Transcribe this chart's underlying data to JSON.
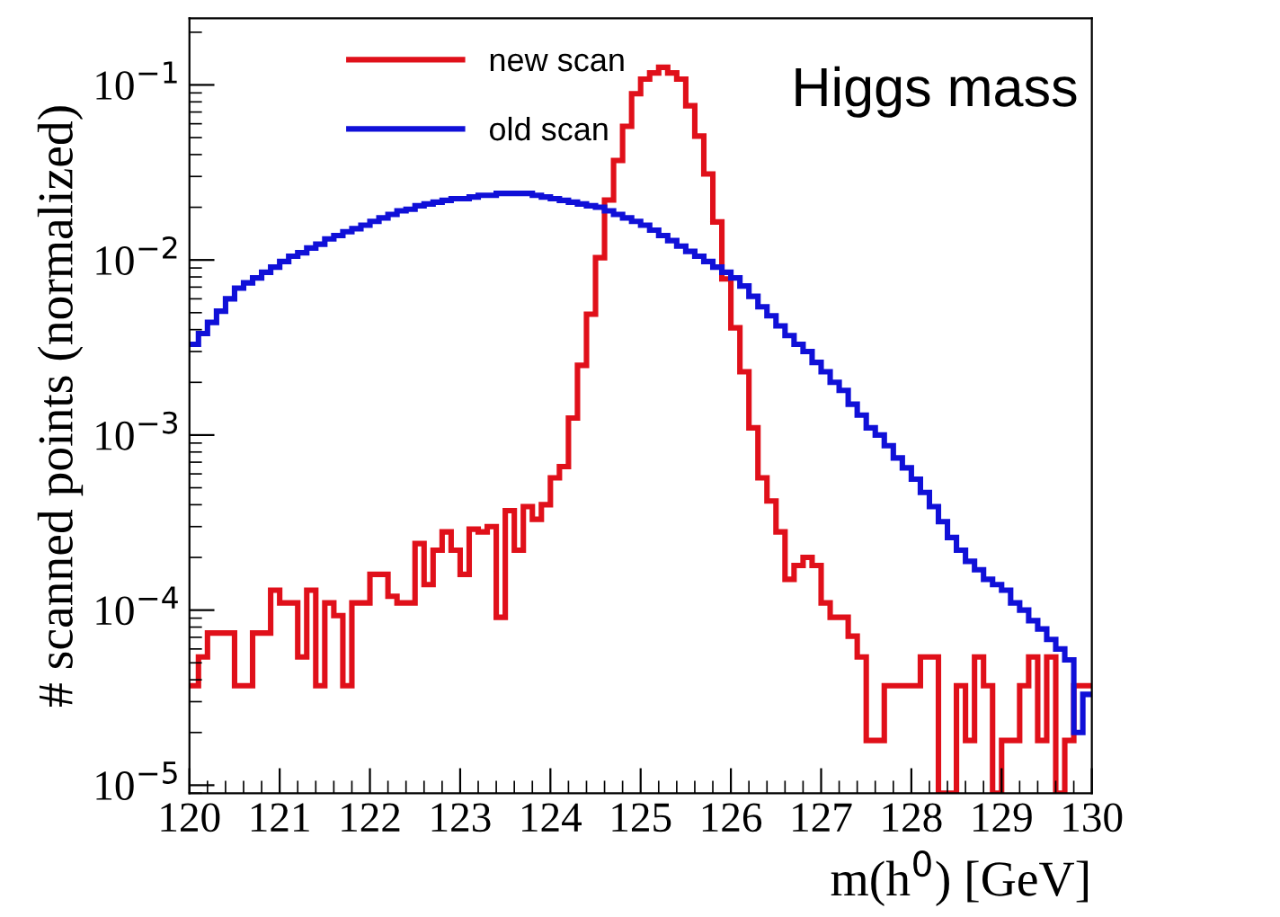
{
  "chart_data": {
    "type": "histogram",
    "xlabel": "m(h$^{0}$) [GeV]",
    "ylabel": "# scanned points (normalized)",
    "annotations": [
      "Higgs mass"
    ],
    "bins": [
      120.0,
      120.1,
      120.2,
      120.3,
      120.4,
      120.5,
      120.6,
      120.7,
      120.8,
      120.9,
      121.0,
      121.1,
      121.2,
      121.3,
      121.4,
      121.5,
      121.6,
      121.7,
      121.8,
      121.9,
      122.0,
      122.1,
      122.2,
      122.3,
      122.4,
      122.5,
      122.6,
      122.7,
      122.8,
      122.9,
      123.0,
      123.1,
      123.2,
      123.3,
      123.4,
      123.5,
      123.6,
      123.7,
      123.8,
      123.9,
      124.0,
      124.1,
      124.2,
      124.3,
      124.4,
      124.5,
      124.6,
      124.7,
      124.8,
      124.9,
      125.0,
      125.1,
      125.2,
      125.3,
      125.4,
      125.5,
      125.6,
      125.7,
      125.8,
      125.9,
      126.0,
      126.1,
      126.2,
      126.3,
      126.4,
      126.5,
      126.6,
      126.7,
      126.8,
      126.9,
      127.0,
      127.1,
      127.2,
      127.3,
      127.4,
      127.5,
      127.6,
      127.7,
      127.8,
      127.9,
      128.0,
      128.1,
      128.2,
      128.3,
      128.4,
      128.5,
      128.6,
      128.7,
      128.8,
      128.9,
      129.0,
      129.1,
      129.2,
      129.3,
      129.4,
      129.5,
      129.6,
      129.7,
      129.8,
      129.9,
      130.0
    ],
    "series": [
      {
        "name": "new scan",
        "color": "#e0101a",
        "values": [
          3.7e-05,
          5.4e-05,
          7.4e-05,
          7.4e-05,
          7.4e-05,
          3.7e-05,
          3.7e-05,
          7.4e-05,
          7.4e-05,
          0.00013,
          0.00011,
          0.00011,
          5.4e-05,
          0.00013,
          3.7e-05,
          0.00011,
          9.3e-05,
          3.7e-05,
          0.00011,
          0.00011,
          0.00016,
          0.00016,
          0.00012,
          0.00011,
          0.00011,
          0.00024,
          0.00014,
          0.00022,
          0.00028,
          0.00022,
          0.00016,
          0.00029,
          0.00028,
          0.0003,
          9.1e-05,
          0.00037,
          0.00022,
          0.00039,
          0.00033,
          0.0004,
          0.00057,
          0.00066,
          0.00125,
          0.0025,
          0.0049,
          0.0103,
          0.022,
          0.037,
          0.058,
          0.089,
          0.108,
          0.117,
          0.126,
          0.117,
          0.108,
          0.076,
          0.051,
          0.031,
          0.0165,
          0.0078,
          0.0041,
          0.0023,
          0.0011,
          0.00057,
          0.00042,
          0.00028,
          0.00015,
          0.00018,
          0.0002,
          0.00018,
          0.00011,
          9.1e-05,
          9.1e-05,
          7.1e-05,
          5.4e-05,
          1.8e-05,
          1.8e-05,
          3.7e-05,
          3.7e-05,
          3.7e-05,
          3.7e-05,
          5.4e-05,
          5.4e-05,
          null,
          null,
          3.7e-05,
          1.8e-05,
          5.4e-05,
          3.7e-05,
          null,
          1.8e-05,
          1.8e-05,
          3.7e-05,
          5.4e-05,
          1.8e-05,
          5.4e-05,
          null,
          1.8e-05,
          3.7e-05,
          3.7e-05
        ]
      },
      {
        "name": "old scan",
        "color": "#1010d8",
        "values": [
          0.0033,
          0.0038,
          0.0044,
          0.0051,
          0.006,
          0.0069,
          0.0074,
          0.0079,
          0.0085,
          0.0091,
          0.0098,
          0.0105,
          0.011,
          0.0117,
          0.0123,
          0.0132,
          0.0138,
          0.0145,
          0.0151,
          0.0158,
          0.0166,
          0.0174,
          0.0182,
          0.0191,
          0.0195,
          0.0204,
          0.0209,
          0.0214,
          0.0219,
          0.0224,
          0.0224,
          0.0229,
          0.0234,
          0.0234,
          0.024,
          0.024,
          0.024,
          0.024,
          0.0234,
          0.0229,
          0.0224,
          0.0219,
          0.0214,
          0.0209,
          0.0204,
          0.02,
          0.0191,
          0.0182,
          0.0174,
          0.0166,
          0.0158,
          0.0148,
          0.0138,
          0.0129,
          0.012,
          0.0112,
          0.0105,
          0.0098,
          0.0091,
          0.0085,
          0.0079,
          0.0071,
          0.0062,
          0.0054,
          0.0048,
          0.0042,
          0.0037,
          0.0033,
          0.003,
          0.0026,
          0.0023,
          0.002,
          0.0018,
          0.0015,
          0.0013,
          0.0011,
          0.001,
          0.00087,
          0.00074,
          0.00065,
          0.00056,
          0.00047,
          0.00039,
          0.00032,
          0.00026,
          0.00022,
          0.00019,
          0.00017,
          0.00015,
          0.00014,
          0.00013,
          0.00011,
          0.0001,
          8.7e-05,
          7.8e-05,
          6.8e-05,
          6e-05,
          5.2e-05,
          2e-05,
          3.3e-05
        ]
      }
    ],
    "log": "y",
    "xlim": [
      120,
      130
    ],
    "xticks": [
      120,
      121,
      122,
      123,
      124,
      125,
      126,
      127,
      128,
      129,
      130
    ],
    "ylim": [
      9e-06,
      0.24
    ],
    "yticks": [
      {
        "value": 1e-05,
        "label": "10$^{−5}$"
      },
      {
        "value": 0.0001,
        "label": "10$^{−4}$"
      },
      {
        "value": 0.001,
        "label": "10$^{−3}$"
      },
      {
        "value": 0.01,
        "label": "10$^{−2}$"
      },
      {
        "value": 0.1,
        "label": "10$^{−1}$"
      }
    ],
    "legend": "top center",
    "grid": false
  }
}
